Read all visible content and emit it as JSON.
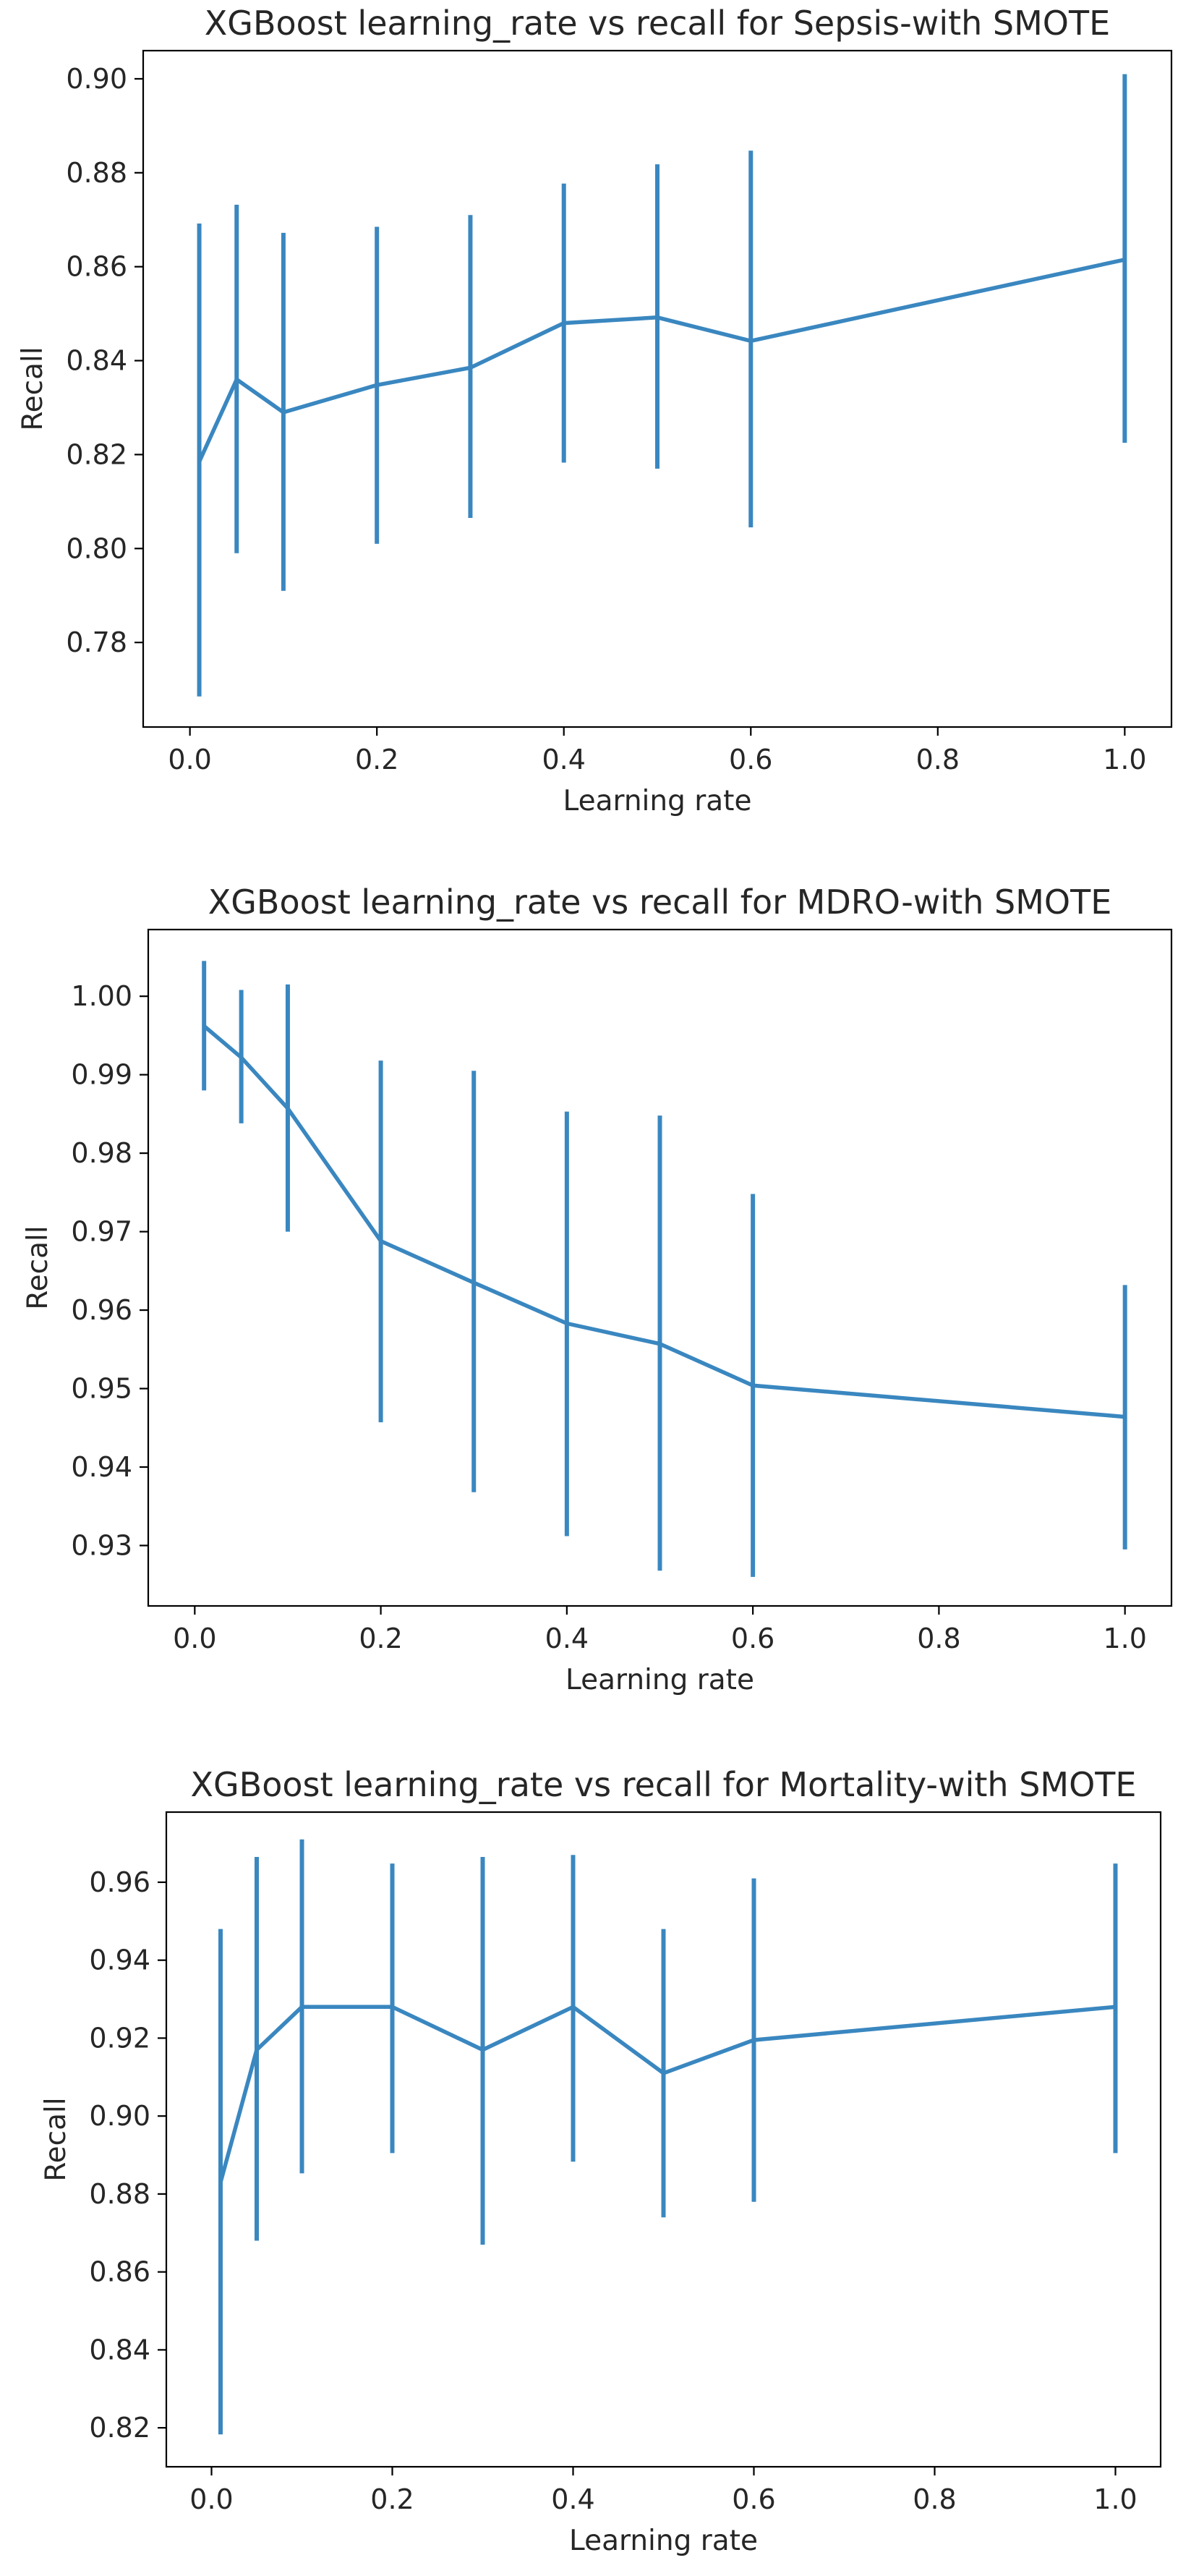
{
  "colors": {
    "series": "#3a87c0",
    "axis": "#000000",
    "text": "#262626"
  },
  "chart_data": [
    {
      "type": "line",
      "title": "XGBoost learning_rate vs recall for Sepsis-with SMOTE",
      "xlabel": "Learning rate",
      "ylabel": "Recall",
      "xlim": [
        -0.05,
        1.05
      ],
      "ylim": [
        0.762,
        0.906
      ],
      "xticks": [
        0.0,
        0.2,
        0.4,
        0.6,
        0.8,
        1.0
      ],
      "xtick_labels": [
        "0.0",
        "0.2",
        "0.4",
        "0.6",
        "0.8",
        "1.0"
      ],
      "yticks": [
        0.78,
        0.8,
        0.82,
        0.84,
        0.86,
        0.88,
        0.9
      ],
      "ytick_labels": [
        "0.78",
        "0.80",
        "0.82",
        "0.84",
        "0.86",
        "0.88",
        "0.90"
      ],
      "x": [
        0.01,
        0.05,
        0.1,
        0.2,
        0.3,
        0.4,
        0.5,
        0.6,
        1.0
      ],
      "y": [
        0.8185,
        0.836,
        0.829,
        0.8348,
        0.8385,
        0.848,
        0.8492,
        0.8442,
        0.8615
      ],
      "yerr_low": [
        0.7685,
        0.799,
        0.791,
        0.801,
        0.8065,
        0.8183,
        0.817,
        0.8045,
        0.8225
      ],
      "yerr_high": [
        0.8692,
        0.8732,
        0.8672,
        0.8685,
        0.871,
        0.8777,
        0.8818,
        0.8847,
        0.901
      ]
    },
    {
      "type": "line",
      "title": "XGBoost learning_rate vs recall for MDRO-with SMOTE",
      "xlabel": "Learning rate",
      "ylabel": "Recall",
      "xlim": [
        -0.05,
        1.05
      ],
      "ylim": [
        0.9223,
        1.0085
      ],
      "xticks": [
        0.0,
        0.2,
        0.4,
        0.6,
        0.8,
        1.0
      ],
      "xtick_labels": [
        "0.0",
        "0.2",
        "0.4",
        "0.6",
        "0.8",
        "1.0"
      ],
      "yticks": [
        0.93,
        0.94,
        0.95,
        0.96,
        0.97,
        0.98,
        0.99,
        1.0
      ],
      "ytick_labels": [
        "0.93",
        "0.94",
        "0.95",
        "0.96",
        "0.97",
        "0.98",
        "0.99",
        "1.00"
      ],
      "x": [
        0.01,
        0.05,
        0.1,
        0.2,
        0.3,
        0.4,
        0.5,
        0.6,
        1.0
      ],
      "y": [
        0.9962,
        0.9922,
        0.9857,
        0.9688,
        0.9635,
        0.9583,
        0.9557,
        0.9504,
        0.9464
      ],
      "yerr_low": [
        0.988,
        0.9838,
        0.97,
        0.9457,
        0.9368,
        0.9312,
        0.9268,
        0.926,
        0.9295
      ],
      "yerr_high": [
        1.0045,
        1.0008,
        1.0015,
        0.9918,
        0.9905,
        0.9853,
        0.9848,
        0.9748,
        0.9632
      ]
    },
    {
      "type": "line",
      "title": "XGBoost learning_rate vs recall for Mortality-with SMOTE",
      "xlabel": "Learning rate",
      "ylabel": "Recall",
      "xlim": [
        -0.05,
        1.05
      ],
      "ylim": [
        0.81,
        0.978
      ],
      "xticks": [
        0.0,
        0.2,
        0.4,
        0.6,
        0.8,
        1.0
      ],
      "xtick_labels": [
        "0.0",
        "0.2",
        "0.4",
        "0.6",
        "0.8",
        "1.0"
      ],
      "yticks": [
        0.82,
        0.84,
        0.86,
        0.88,
        0.9,
        0.92,
        0.94,
        0.96
      ],
      "ytick_labels": [
        "0.82",
        "0.84",
        "0.86",
        "0.88",
        "0.90",
        "0.92",
        "0.94",
        "0.96"
      ],
      "x": [
        0.01,
        0.05,
        0.1,
        0.2,
        0.3,
        0.4,
        0.5,
        0.6,
        1.0
      ],
      "y": [
        0.883,
        0.917,
        0.928,
        0.928,
        0.917,
        0.928,
        0.911,
        0.9195,
        0.928
      ],
      "yerr_low": [
        0.8183,
        0.868,
        0.8853,
        0.8905,
        0.867,
        0.8883,
        0.874,
        0.878,
        0.8905
      ],
      "yerr_high": [
        0.948,
        0.9665,
        0.971,
        0.9648,
        0.9665,
        0.967,
        0.948,
        0.961,
        0.9648
      ]
    }
  ]
}
